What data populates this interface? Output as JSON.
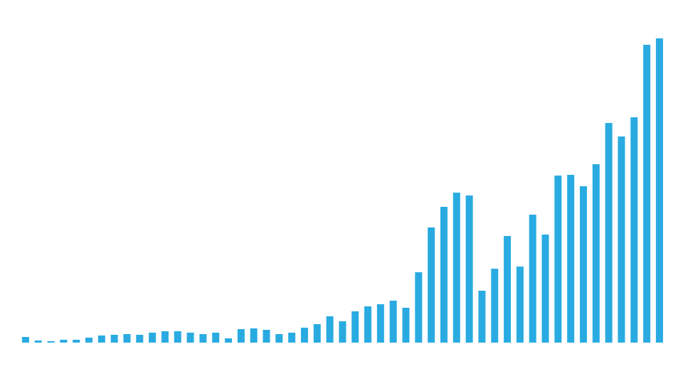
{
  "chart_data": {
    "type": "bar",
    "categories": [
      null,
      null,
      null,
      null,
      null,
      null,
      null,
      null,
      null,
      null,
      null,
      null,
      null,
      null,
      null,
      null,
      null,
      null,
      null,
      null,
      null,
      null,
      null,
      null,
      null,
      null,
      null,
      null,
      null,
      null,
      null,
      null,
      null,
      null,
      null,
      null,
      null,
      null,
      null,
      null,
      null,
      null,
      null,
      null,
      null,
      null,
      null,
      null,
      null,
      null,
      null
    ],
    "values": [
      8,
      3,
      2,
      4,
      4,
      7,
      10,
      11,
      12,
      11,
      14,
      16,
      16,
      14,
      12,
      14,
      6,
      19,
      20,
      18,
      12,
      14,
      21,
      26,
      37,
      30,
      44,
      51,
      54,
      59,
      49,
      99,
      162,
      191,
      211,
      207,
      73,
      104,
      150,
      107,
      180,
      152,
      235,
      236,
      220,
      251,
      309,
      290,
      317,
      419,
      428
    ],
    "color": "#29abe2",
    "ylim": [
      0,
      430
    ]
  }
}
